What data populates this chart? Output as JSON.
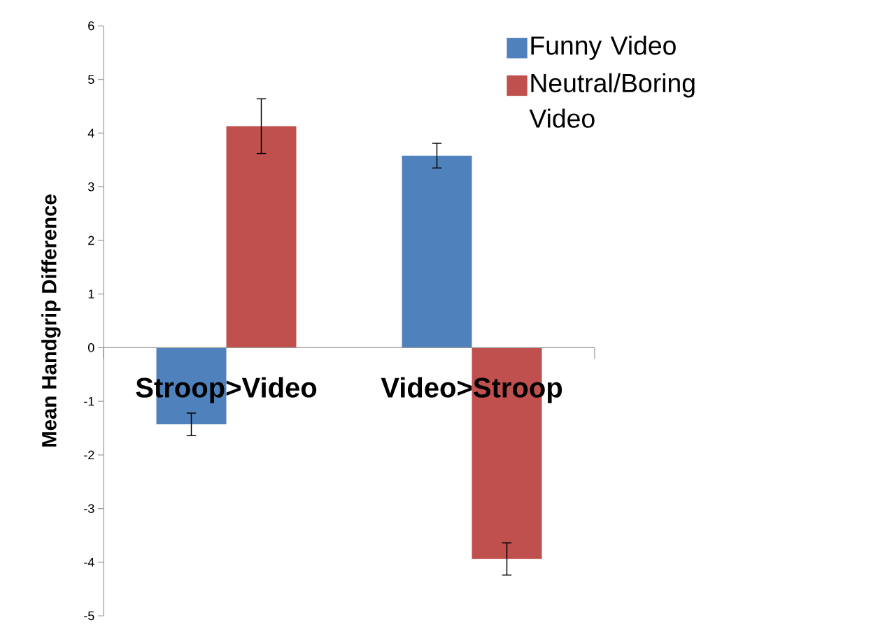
{
  "chart_data": {
    "type": "bar",
    "ylabel": "Mean Handgrip Difference",
    "categories": [
      "Stroop>Video",
      "Video>Stroop"
    ],
    "series": [
      {
        "name": "Funny Video",
        "color": "#4f81bd",
        "values": [
          -1.43,
          3.58
        ],
        "errors": [
          0.21,
          0.23
        ]
      },
      {
        "name": "Neutral/Boring Video",
        "color": "#c0504d",
        "values": [
          4.13,
          -3.94
        ],
        "errors": [
          0.51,
          0.3
        ]
      }
    ],
    "ylim": [
      -5,
      6
    ],
    "yticks": [
      -5,
      -4,
      -3,
      -2,
      -1,
      0,
      1,
      2,
      3,
      4,
      5,
      6
    ],
    "grid": false,
    "legend": "top right"
  }
}
